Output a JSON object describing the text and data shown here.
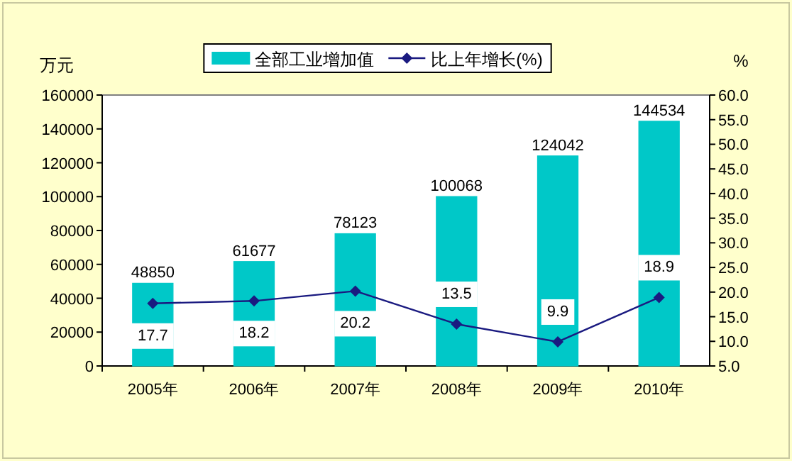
{
  "chart_data": {
    "type": "bar",
    "categories": [
      "2005年",
      "2006年",
      "2007年",
      "2008年",
      "2009年",
      "2010年"
    ],
    "ylabel": "万元",
    "y2label": "%",
    "series": [
      {
        "name": "全部工业增加值",
        "color": "#00c8c8",
        "values": [
          48850,
          61677,
          78123,
          100068,
          124042,
          144534
        ]
      },
      {
        "name": "比上年增长(%)",
        "type": "line",
        "axis": "y2",
        "color": "#1a1a80",
        "marker": "diamond",
        "values": [
          17.7,
          18.2,
          20.2,
          13.5,
          9.9,
          18.9
        ]
      }
    ],
    "ylim": [
      0,
      160000
    ],
    "yticks": [
      0,
      20000,
      40000,
      60000,
      80000,
      100000,
      120000,
      140000,
      160000
    ],
    "y2lim": [
      5,
      60
    ],
    "y2ticks": [
      {
        "value": 5,
        "label": "5.0"
      },
      {
        "value": 10,
        "label": "10.0"
      },
      {
        "value": 15,
        "label": "15.0"
      },
      {
        "value": 20,
        "label": "20.0"
      },
      {
        "value": 25,
        "label": "25.0"
      },
      {
        "value": 30,
        "label": "30.0"
      },
      {
        "value": 35,
        "label": "35.0"
      },
      {
        "value": 40,
        "label": "40.0"
      },
      {
        "value": 45,
        "label": "45.0"
      },
      {
        "value": 50,
        "label": "50.0"
      },
      {
        "value": 55,
        "label": "55.0"
      },
      {
        "value": 60,
        "label": "60.0"
      }
    ],
    "data_labels": true,
    "legend": "top",
    "grid": false
  }
}
